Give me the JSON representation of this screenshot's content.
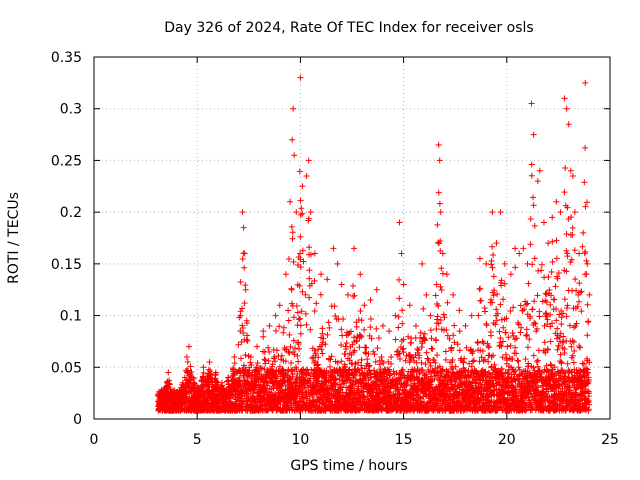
{
  "chart_data": {
    "type": "scatter",
    "title": "Day 326 of 2024, Rate Of TEC Index for receiver osls",
    "xlabel": "GPS time / hours",
    "ylabel": "ROTI / TECUs",
    "xlim": [
      0,
      25
    ],
    "ylim": [
      0,
      0.35
    ],
    "xticks": [
      0,
      5,
      10,
      15,
      20,
      25
    ],
    "yticks": [
      0,
      0.05,
      0.1,
      0.15,
      0.2,
      0.25,
      0.3,
      0.35
    ],
    "xtick_labels": [
      "0",
      "5",
      "10",
      "15",
      "20",
      "25"
    ],
    "ytick_labels": [
      "0",
      "0.05",
      "0.1",
      "0.15",
      "0.2",
      "0.25",
      "0.3",
      "0.35"
    ],
    "grid": true,
    "marker": "+",
    "color": "#ff0000",
    "x_data_range": [
      3.1,
      24.0
    ],
    "series": [
      {
        "name": "ROTI",
        "points": [
          [
            3.2,
            0.015
          ],
          [
            3.3,
            0.022
          ],
          [
            3.4,
            0.018
          ],
          [
            3.5,
            0.03
          ],
          [
            3.6,
            0.045
          ],
          [
            3.7,
            0.025
          ],
          [
            4.0,
            0.02
          ],
          [
            4.3,
            0.035
          ],
          [
            4.5,
            0.06
          ],
          [
            4.6,
            0.07
          ],
          [
            4.8,
            0.04
          ],
          [
            5.0,
            0.03
          ],
          [
            5.3,
            0.05
          ],
          [
            5.6,
            0.055
          ],
          [
            5.9,
            0.045
          ],
          [
            6.2,
            0.035
          ],
          [
            6.5,
            0.04
          ],
          [
            6.8,
            0.06
          ],
          [
            7.1,
            0.1
          ],
          [
            7.2,
            0.2
          ],
          [
            7.25,
            0.185
          ],
          [
            7.3,
            0.16
          ],
          [
            7.35,
            0.125
          ],
          [
            7.4,
            0.095
          ],
          [
            7.6,
            0.06
          ],
          [
            7.9,
            0.07
          ],
          [
            8.2,
            0.085
          ],
          [
            8.5,
            0.09
          ],
          [
            8.8,
            0.1
          ],
          [
            9.0,
            0.11
          ],
          [
            9.3,
            0.14
          ],
          [
            9.5,
            0.21
          ],
          [
            9.6,
            0.27
          ],
          [
            9.65,
            0.3
          ],
          [
            9.7,
            0.255
          ],
          [
            9.8,
            0.2
          ],
          [
            10.0,
            0.33
          ],
          [
            10.1,
            0.225
          ],
          [
            10.3,
            0.235
          ],
          [
            10.4,
            0.25
          ],
          [
            10.5,
            0.2
          ],
          [
            10.7,
            0.16
          ],
          [
            11.0,
            0.14
          ],
          [
            11.3,
            0.135
          ],
          [
            11.6,
            0.165
          ],
          [
            11.8,
            0.15
          ],
          [
            12.0,
            0.13
          ],
          [
            12.3,
            0.12
          ],
          [
            12.6,
            0.165
          ],
          [
            12.9,
            0.14
          ],
          [
            13.1,
            0.11
          ],
          [
            13.4,
            0.115
          ],
          [
            13.7,
            0.125
          ],
          [
            14.0,
            0.09
          ],
          [
            14.3,
            0.085
          ],
          [
            14.6,
            0.1
          ],
          [
            14.8,
            0.19
          ],
          [
            14.9,
            0.16
          ],
          [
            15.0,
            0.13
          ],
          [
            15.3,
            0.11
          ],
          [
            15.6,
            0.09
          ],
          [
            15.9,
            0.15
          ],
          [
            16.1,
            0.12
          ],
          [
            16.3,
            0.1
          ],
          [
            16.6,
            0.13
          ],
          [
            16.7,
            0.265
          ],
          [
            16.75,
            0.25
          ],
          [
            16.8,
            0.2
          ],
          [
            16.9,
            0.16
          ],
          [
            17.1,
            0.14
          ],
          [
            17.4,
            0.12
          ],
          [
            17.7,
            0.105
          ],
          [
            18.0,
            0.09
          ],
          [
            18.3,
            0.1
          ],
          [
            18.7,
            0.155
          ],
          [
            19.0,
            0.15
          ],
          [
            19.3,
            0.2
          ],
          [
            19.5,
            0.17
          ],
          [
            19.7,
            0.2
          ],
          [
            19.9,
            0.15
          ],
          [
            20.2,
            0.14
          ],
          [
            20.4,
            0.165
          ],
          [
            20.6,
            0.16
          ],
          [
            20.8,
            0.165
          ],
          [
            21.0,
            0.15
          ],
          [
            21.2,
            0.305
          ],
          [
            21.3,
            0.275
          ],
          [
            21.5,
            0.23
          ],
          [
            21.6,
            0.24
          ],
          [
            21.8,
            0.19
          ],
          [
            22.0,
            0.17
          ],
          [
            22.2,
            0.195
          ],
          [
            22.4,
            0.21
          ],
          [
            22.6,
            0.2
          ],
          [
            22.8,
            0.31
          ],
          [
            22.9,
            0.3
          ],
          [
            23.0,
            0.285
          ],
          [
            23.1,
            0.24
          ],
          [
            23.2,
            0.235
          ],
          [
            23.3,
            0.2
          ],
          [
            23.5,
            0.16
          ],
          [
            23.7,
            0.18
          ],
          [
            23.8,
            0.325
          ],
          [
            23.9,
            0.15
          ],
          [
            24.0,
            0.12
          ]
        ]
      }
    ]
  }
}
